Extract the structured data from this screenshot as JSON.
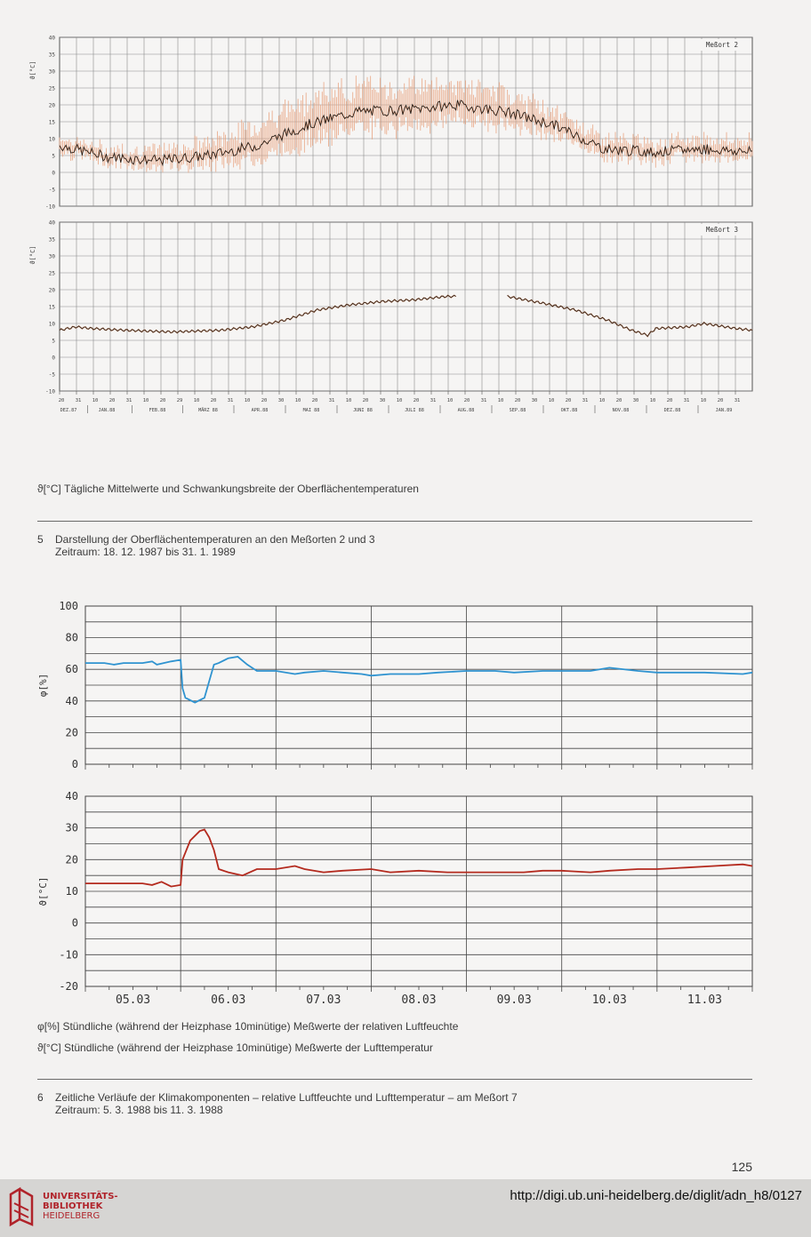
{
  "chart_data": [
    {
      "id": "fig5a",
      "type": "line",
      "title": "Meßort 2",
      "ylabel": "ϑ[°C]",
      "ylim": [
        -10,
        40
      ],
      "yticks": [
        -10,
        -5,
        0,
        5,
        10,
        15,
        20,
        25,
        30,
        35,
        40
      ],
      "series": [
        {
          "name": "Tagesmittel",
          "color": "#2a1a10",
          "kind": "mean"
        },
        {
          "name": "Schwankungsbreite",
          "color": "#e8a27e",
          "kind": "range"
        }
      ],
      "monthly_mean": [
        8,
        4.5,
        3.5,
        5,
        8,
        14,
        18,
        18.5,
        20,
        18,
        14,
        7,
        6,
        7,
        6
      ],
      "monthly_range": [
        3,
        3,
        4,
        5,
        8,
        10,
        9,
        9,
        8,
        7,
        5,
        4,
        4,
        4,
        4
      ]
    },
    {
      "id": "fig5b",
      "type": "line",
      "title": "Meßort 3",
      "ylabel": "ϑ[°C]",
      "ylim": [
        -10,
        40
      ],
      "yticks": [
        -10,
        -5,
        0,
        5,
        10,
        15,
        20,
        25,
        30,
        35,
        40
      ],
      "series": [
        {
          "name": "Tagesmittel",
          "color": "#2a1a10"
        }
      ],
      "points": [
        [
          0,
          8
        ],
        [
          10,
          9
        ],
        [
          20,
          8.5
        ],
        [
          40,
          8
        ],
        [
          70,
          7.5
        ],
        [
          100,
          8
        ],
        [
          120,
          9
        ],
        [
          140,
          11
        ],
        [
          160,
          14
        ],
        [
          180,
          15.5
        ],
        [
          200,
          16.5
        ],
        [
          220,
          17
        ],
        [
          240,
          18
        ],
        [
          246,
          18
        ]
      ],
      "points2": [
        [
          278,
          18
        ],
        [
          300,
          16
        ],
        [
          320,
          14
        ],
        [
          340,
          11
        ],
        [
          350,
          9
        ],
        [
          355,
          8
        ],
        [
          365,
          6.5
        ],
        [
          370,
          8.5
        ],
        [
          390,
          9
        ],
        [
          400,
          10
        ],
        [
          420,
          8.5
        ],
        [
          430,
          8
        ]
      ],
      "xlabels_days": [
        "20",
        "31",
        "10",
        "20",
        "31",
        "10",
        "20",
        "29",
        "10",
        "20",
        "31",
        "10",
        "20",
        "30",
        "10",
        "20",
        "31",
        "10",
        "20",
        "30",
        "10",
        "20",
        "31",
        "10",
        "20",
        "31",
        "10",
        "20",
        "30",
        "10",
        "20",
        "31",
        "10",
        "20",
        "30",
        "10",
        "20",
        "31",
        "10",
        "20",
        "31"
      ],
      "xlabels_months": [
        "DEZ.87",
        "JAN.88",
        "FEB.88",
        "MÄRZ 88",
        "APR.88",
        "MAI 88",
        "JUNI 88",
        "JULI 88",
        "AUG.88",
        "SEP.88",
        "OKT.88",
        "NOV.88",
        "DEZ.88",
        "JAN.89"
      ]
    },
    {
      "id": "fig6a",
      "type": "line",
      "ylabel": "φ[%]",
      "ylim": [
        0,
        100
      ],
      "yticks": [
        0,
        20,
        40,
        60,
        80,
        100
      ],
      "categories": [
        "05.03",
        "06.03",
        "07.03",
        "08.03",
        "09.03",
        "10.03",
        "11.03"
      ],
      "series": [
        {
          "name": "relative Luftfeuchte",
          "color": "#2f93d0",
          "x": [
            0,
            0.2,
            0.3,
            0.4,
            0.6,
            0.7,
            0.75,
            0.9,
            1.0,
            1.02,
            1.05,
            1.15,
            1.25,
            1.35,
            1.4,
            1.5,
            1.6,
            1.7,
            1.8,
            1.9,
            2.0,
            2.2,
            2.3,
            2.5,
            2.7,
            2.9,
            3.0,
            3.2,
            3.5,
            3.7,
            4.0,
            4.3,
            4.5,
            4.8,
            5.0,
            5.3,
            5.5,
            5.8,
            6.0,
            6.3,
            6.5,
            6.9,
            7.0
          ],
          "values": [
            64,
            64,
            63,
            64,
            64,
            65,
            63,
            65,
            66,
            48,
            42,
            39,
            42,
            63,
            64,
            67,
            68,
            63,
            59,
            59,
            59,
            57,
            58,
            59,
            58,
            57,
            56,
            57,
            57,
            58,
            59,
            59,
            58,
            59,
            59,
            59,
            61,
            59,
            58,
            58,
            58,
            57,
            58
          ]
        }
      ]
    },
    {
      "id": "fig6b",
      "type": "line",
      "ylabel": "ϑ[°C]",
      "ylim": [
        -20,
        40
      ],
      "yticks": [
        -20,
        -10,
        0,
        10,
        20,
        30,
        40
      ],
      "categories": [
        "05.03",
        "06.03",
        "07.03",
        "08.03",
        "09.03",
        "10.03",
        "11.03"
      ],
      "series": [
        {
          "name": "Lufttemperatur",
          "color": "#b42a1e",
          "x": [
            0,
            0.2,
            0.4,
            0.6,
            0.7,
            0.8,
            0.9,
            1.0,
            1.02,
            1.1,
            1.2,
            1.25,
            1.3,
            1.35,
            1.4,
            1.5,
            1.65,
            1.8,
            2.0,
            2.2,
            2.3,
            2.5,
            2.7,
            3.0,
            3.2,
            3.5,
            3.8,
            4.0,
            4.3,
            4.6,
            4.8,
            5.0,
            5.3,
            5.5,
            5.8,
            6.0,
            6.3,
            6.6,
            6.9,
            7.0
          ],
          "values": [
            12.5,
            12.5,
            12.5,
            12.5,
            12,
            13,
            11.5,
            12,
            20,
            26,
            29,
            29.5,
            27,
            23,
            17,
            16,
            15,
            17,
            17,
            18,
            17,
            16,
            16.5,
            17,
            16,
            16.5,
            16,
            16,
            16,
            16,
            16.5,
            16.5,
            16,
            16.5,
            17,
            17,
            17.5,
            18,
            18.5,
            18
          ]
        }
      ]
    }
  ],
  "captions": {
    "fig5_legend": "ϑ[°C] Tägliche Mittelwerte und Schwankungsbreite der Oberflächentemperaturen",
    "fig5_num": "5",
    "fig5_title": "Darstellung der Oberflächentemperaturen an den Meßorten 2 und 3",
    "fig5_range": "Zeitraum: 18. 12. 1987 bis 31. 1. 1989",
    "fig6_legend1": "φ[%] Stündliche (während der Heizphase 10minütige) Meßwerte der relativen Luftfeuchte",
    "fig6_legend2": "ϑ[°C] Stündliche (während der Heizphase 10minütige) Meßwerte der Lufttemperatur",
    "fig6_num": "6",
    "fig6_title": "Zeitliche Verläufe der Klimakomponenten – relative Luftfeuchte und Lufttemperatur – am Meßort 7",
    "fig6_range": "Zeitraum: 5. 3. 1988 bis 11. 3. 1988",
    "page_number": "125"
  },
  "footer": {
    "logo_lines": [
      "UNIVERSITÄTS-",
      "BIBLIOTHEK",
      "HEIDELBERG"
    ],
    "url": "http://digi.ub.uni-heidelberg.de/diglit/adn_h8/0127",
    "logo_color": "#b0232a"
  }
}
